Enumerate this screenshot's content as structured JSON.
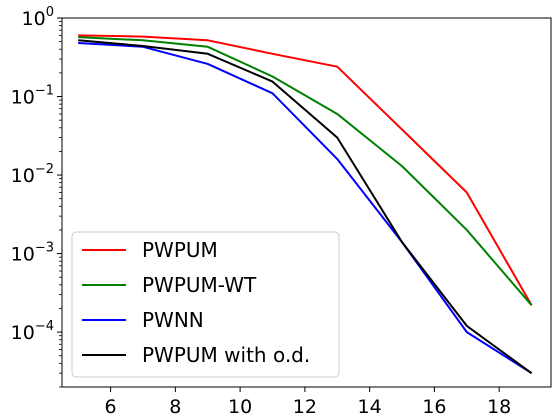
{
  "chart_data": {
    "type": "line",
    "title": "",
    "xlabel": "",
    "ylabel": "",
    "x": [
      5,
      7,
      9,
      11,
      13,
      15,
      17,
      19
    ],
    "xlim": [
      4.5,
      19.6
    ],
    "ylim": [
      2e-05,
      1
    ],
    "yscale": "log",
    "x_ticks": [
      6,
      8,
      10,
      12,
      14,
      16,
      18
    ],
    "y_ticks": [
      {
        "value": 1,
        "base": "10",
        "exp": "0"
      },
      {
        "value": 0.1,
        "base": "10",
        "exp": "−1"
      },
      {
        "value": 0.01,
        "base": "10",
        "exp": "−2"
      },
      {
        "value": 0.001,
        "base": "10",
        "exp": "−3"
      },
      {
        "value": 0.0001,
        "base": "10",
        "exp": "−4"
      }
    ],
    "grid": false,
    "legend_position": "lower-left",
    "series": [
      {
        "name": "PWPUM",
        "color": "#ff0000",
        "values": [
          0.6,
          0.58,
          0.52,
          0.35,
          0.24,
          0.038,
          0.006,
          0.00022
        ]
      },
      {
        "name": "PWPUM-WT",
        "color": "#008000",
        "values": [
          0.57,
          0.52,
          0.43,
          0.18,
          0.06,
          0.013,
          0.002,
          0.00022
        ]
      },
      {
        "name": "PWNN",
        "color": "#0000ff",
        "values": [
          0.48,
          0.43,
          0.26,
          0.11,
          0.016,
          0.0014,
          0.0001,
          3e-05
        ]
      },
      {
        "name": "PWPUM with o.d.",
        "color": "#000000",
        "values": [
          0.52,
          0.44,
          0.35,
          0.155,
          0.03,
          0.0014,
          0.00012,
          3e-05
        ]
      }
    ]
  }
}
